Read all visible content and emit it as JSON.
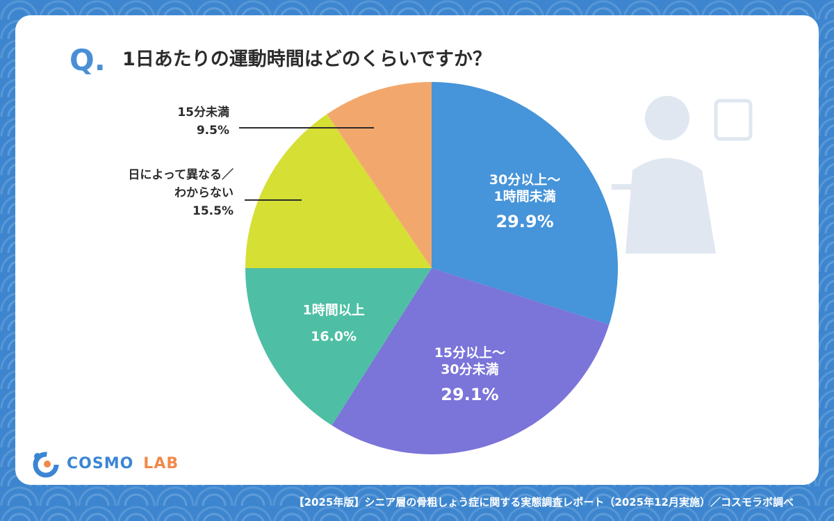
{
  "question": {
    "mark": "Q.",
    "text": "1日あたりの運動時間はどのくらいですか？"
  },
  "chart_data": {
    "type": "pie",
    "title": "1日あたりの運動時間はどのくらいですか？",
    "slices": [
      {
        "label_lines": [
          "30分以上～",
          "1時間未満"
        ],
        "value": 29.9,
        "display": "29.9%",
        "color": "#4694d9",
        "label_inside": true,
        "label_color": "#ffffff"
      },
      {
        "label_lines": [
          "15分以上～",
          "30分未満"
        ],
        "value": 29.1,
        "display": "29.1%",
        "color": "#7b74d9",
        "label_inside": true,
        "label_color": "#ffffff"
      },
      {
        "label_lines": [
          "1時間以上"
        ],
        "value": 16.0,
        "display": "16.0%",
        "color": "#4ebfa4",
        "label_inside": true,
        "label_color": "#ffffff"
      },
      {
        "label_lines": [
          "日によって異なる／",
          "わからない"
        ],
        "value": 15.5,
        "display": "15.5%",
        "color": "#d6df34",
        "label_inside": false,
        "label_color": "#2b2b2b"
      },
      {
        "label_lines": [
          "15分未満"
        ],
        "value": 9.5,
        "display": "9.5%",
        "color": "#f2a86c",
        "label_inside": false,
        "label_color": "#2b2b2b"
      }
    ],
    "start_angle_deg": 0,
    "direction": "clockwise"
  },
  "logo": {
    "cosmo": "COSMO",
    "lab": "LAB"
  },
  "footer": {
    "note": "【2025年版】シニア層の骨粗しょう症に関する実態調査レポート（2025年12月実施）／コスモラボ調べ"
  },
  "colors": {
    "background": "#3d86cf",
    "accent": "#4a8fd6"
  }
}
